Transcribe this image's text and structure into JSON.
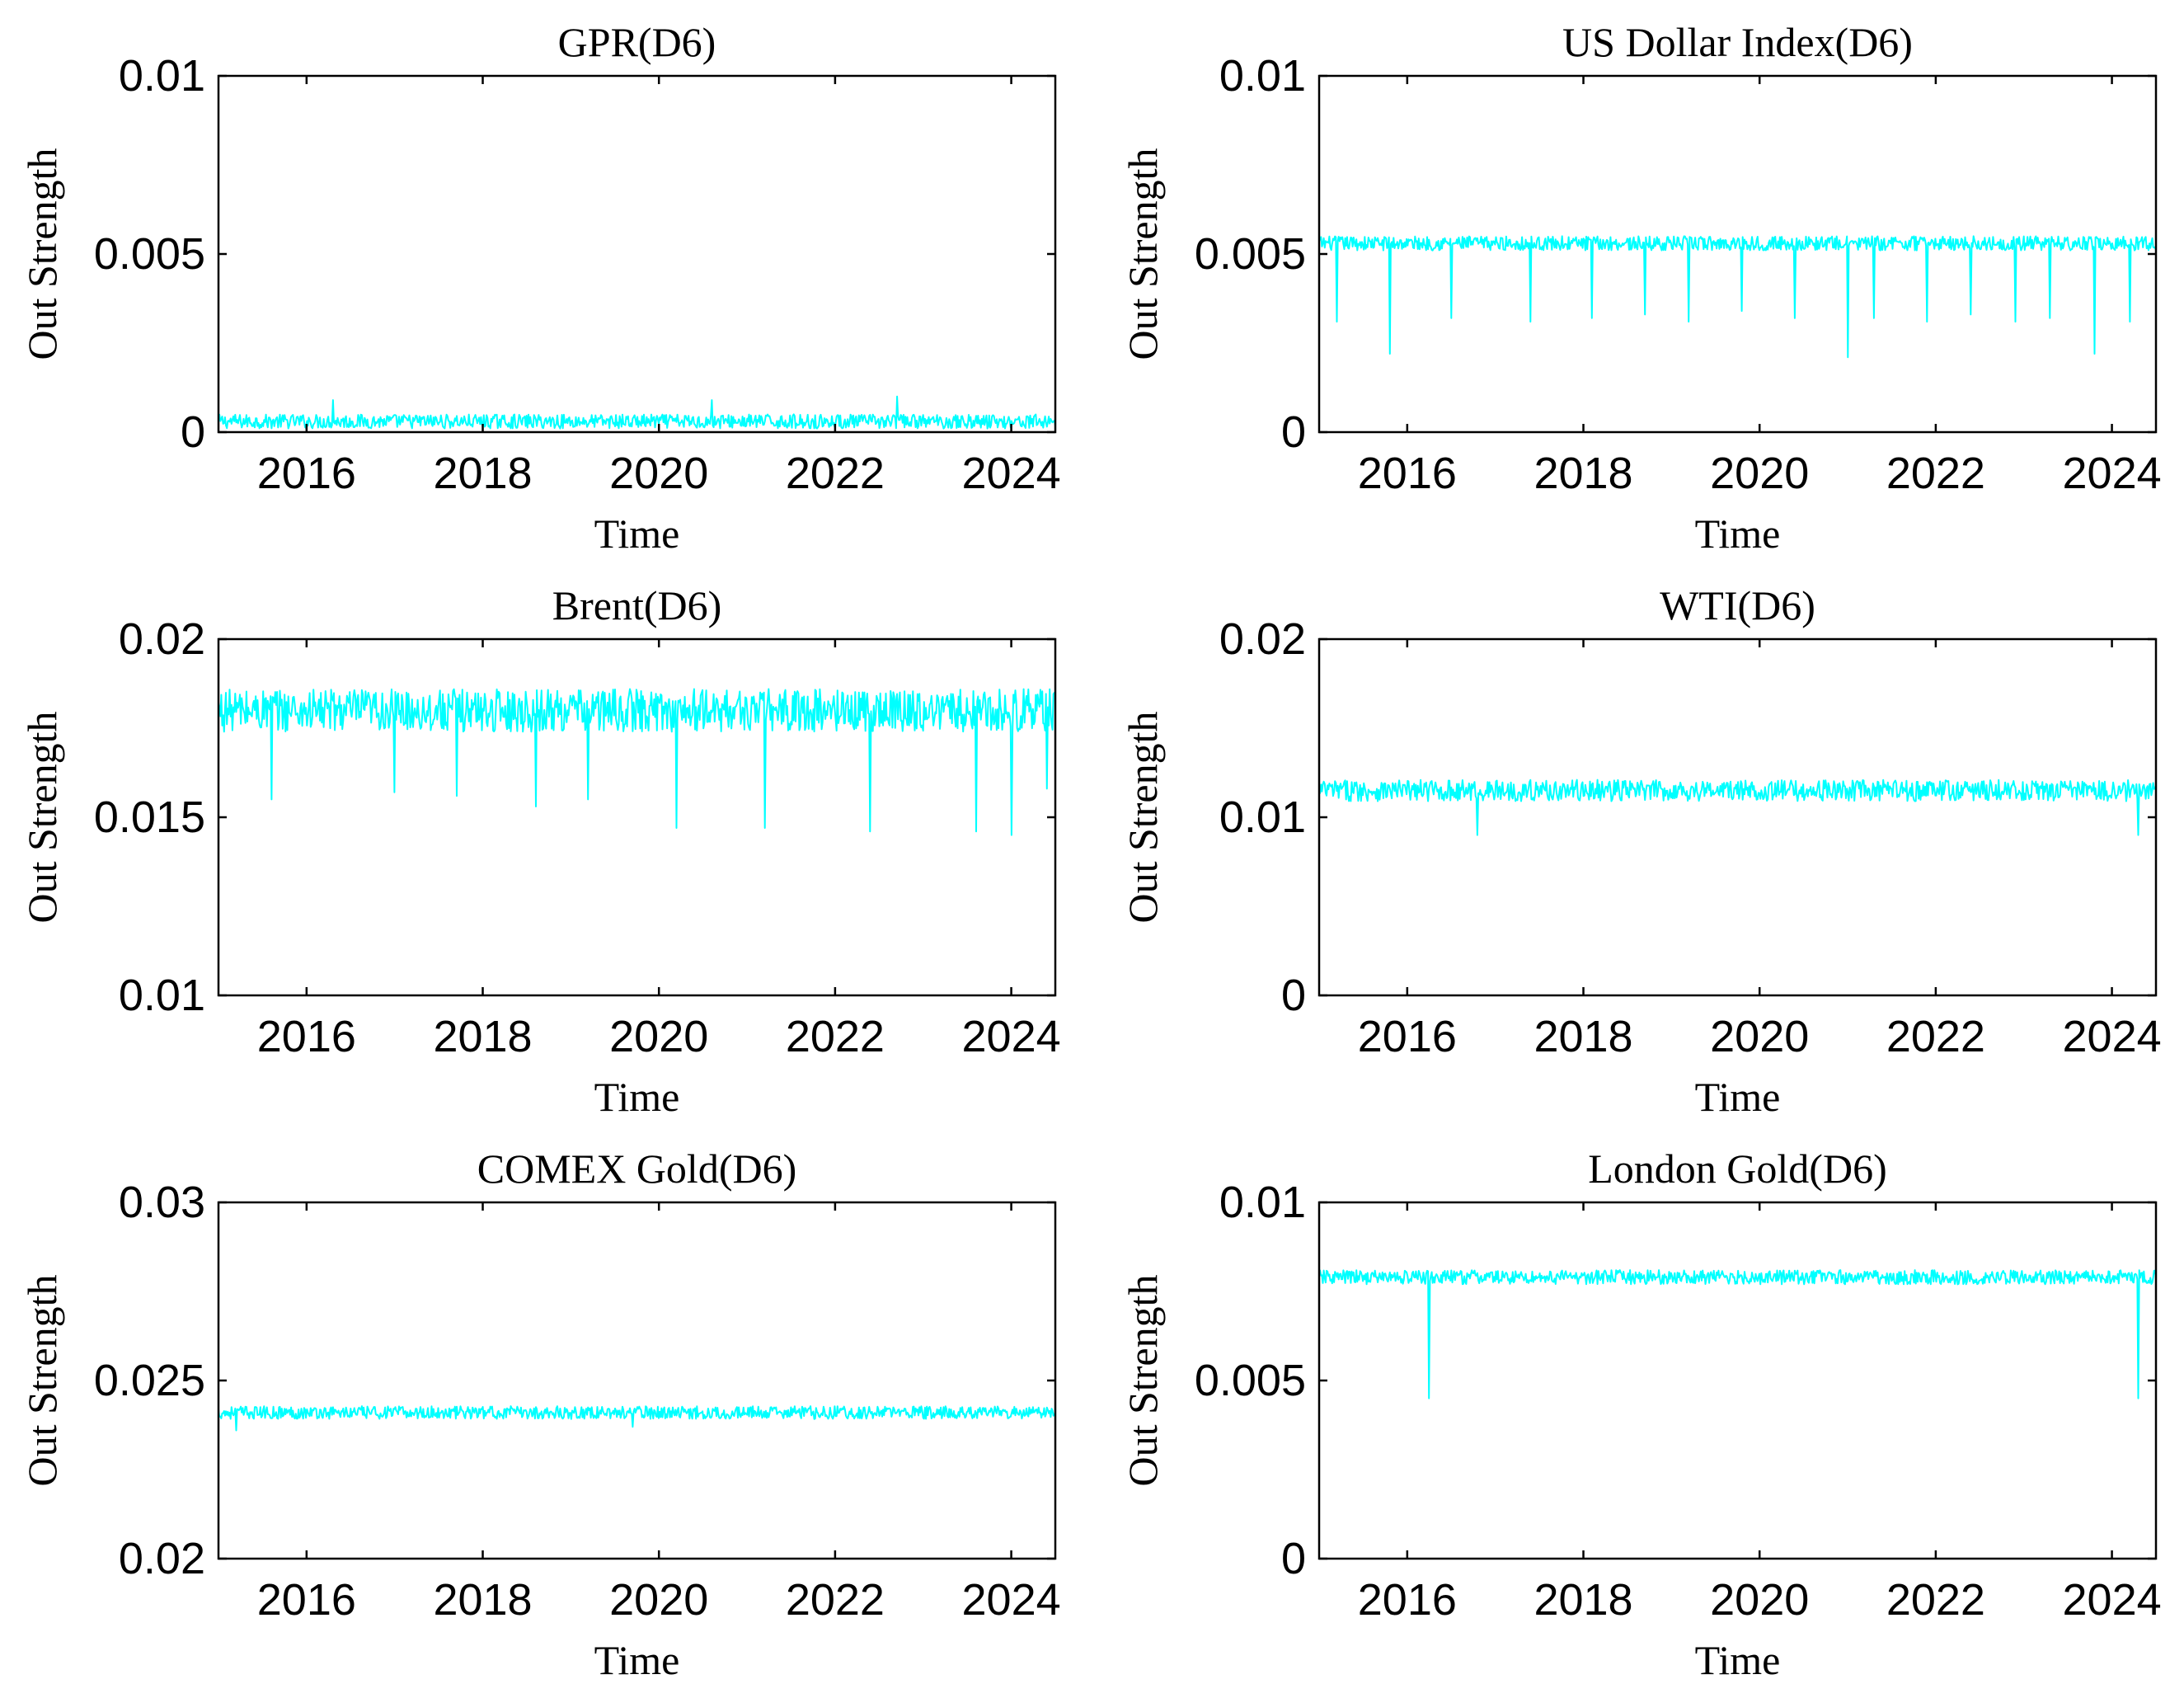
{
  "figure": {
    "description_free": true
  },
  "chart_data": [
    {
      "type": "line",
      "title": "GPR(D6)",
      "xlabel": "Time",
      "ylabel": "Out Strength",
      "xlim": [
        2015.0,
        2024.5
      ],
      "ylim": [
        0,
        0.01
      ],
      "xticks": [
        2016,
        2018,
        2020,
        2022,
        2024
      ],
      "yticks": [
        0,
        0.005,
        0.01
      ],
      "ytick_labels": [
        "0",
        "0.005",
        "0.01"
      ],
      "color": "#00FFFF",
      "series": [
        {
          "name": "GPR(D6)",
          "level": 0.0003,
          "noise": 0.0002,
          "min": 0.0,
          "spikes": [
            [
              2016.3,
              0.0009
            ],
            [
              2020.6,
              0.0009
            ],
            [
              2022.7,
              0.001
            ]
          ]
        }
      ]
    },
    {
      "type": "line",
      "title": "US Dollar Index(D6)",
      "xlabel": "Time",
      "ylabel": "Out Strength",
      "xlim": [
        2015.0,
        2024.5
      ],
      "ylim": [
        0,
        0.01
      ],
      "xticks": [
        2016,
        2018,
        2020,
        2022,
        2024
      ],
      "yticks": [
        0,
        0.005,
        0.01
      ],
      "ytick_labels": [
        "0",
        "0.005",
        "0.01"
      ],
      "color": "#00FFFF",
      "series": [
        {
          "name": "US Dollar Index(D6)",
          "level": 0.0053,
          "noise": 0.0002,
          "spikes": [
            [
              2015.2,
              0.0031
            ],
            [
              2015.8,
              0.0022
            ],
            [
              2016.5,
              0.0032
            ],
            [
              2017.4,
              0.0031
            ],
            [
              2018.1,
              0.0032
            ],
            [
              2018.7,
              0.0033
            ],
            [
              2019.2,
              0.0031
            ],
            [
              2019.8,
              0.0034
            ],
            [
              2020.4,
              0.0032
            ],
            [
              2021.0,
              0.0021
            ],
            [
              2021.3,
              0.0032
            ],
            [
              2021.9,
              0.0031
            ],
            [
              2022.4,
              0.0033
            ],
            [
              2022.9,
              0.0031
            ],
            [
              2023.3,
              0.0032
            ],
            [
              2023.8,
              0.0022
            ],
            [
              2024.2,
              0.0031
            ]
          ]
        }
      ]
    },
    {
      "type": "line",
      "title": "Brent(D6)",
      "xlabel": "Time",
      "ylabel": "Out Strength",
      "xlim": [
        2015.0,
        2024.5
      ],
      "ylim": [
        0.01,
        0.02
      ],
      "xticks": [
        2016,
        2018,
        2020,
        2022,
        2024
      ],
      "yticks": [
        0.01,
        0.015,
        0.02
      ],
      "ytick_labels": [
        "0.01",
        "0.015",
        "0.02"
      ],
      "color": "#00FFFF",
      "series": [
        {
          "name": "Brent(D6)",
          "level": 0.018,
          "noise": 0.0006,
          "spikes": [
            [
              2015.6,
              0.0155
            ],
            [
              2017.0,
              0.0157
            ],
            [
              2017.7,
              0.0156
            ],
            [
              2018.6,
              0.0153
            ],
            [
              2019.2,
              0.0155
            ],
            [
              2020.2,
              0.0147
            ],
            [
              2021.2,
              0.0147
            ],
            [
              2022.4,
              0.0146
            ],
            [
              2023.6,
              0.0146
            ],
            [
              2024.0,
              0.0145
            ],
            [
              2024.4,
              0.0158
            ]
          ]
        }
      ]
    },
    {
      "type": "line",
      "title": "WTI(D6)",
      "xlabel": "Time",
      "ylabel": "Out Strength",
      "xlim": [
        2015.0,
        2024.5
      ],
      "ylim": [
        0,
        0.02
      ],
      "xticks": [
        2016,
        2018,
        2020,
        2022,
        2024
      ],
      "yticks": [
        0,
        0.01,
        0.02
      ],
      "ytick_labels": [
        "0",
        "0.01",
        "0.02"
      ],
      "color": "#00FFFF",
      "series": [
        {
          "name": "WTI(D6)",
          "level": 0.0115,
          "noise": 0.0006,
          "spikes": [
            [
              2016.8,
              0.009
            ],
            [
              2024.3,
              0.009
            ]
          ]
        }
      ]
    },
    {
      "type": "line",
      "title": "COMEX Gold(D6)",
      "xlabel": "Time",
      "ylabel": "Out Strength",
      "xlim": [
        2015.0,
        2024.5
      ],
      "ylim": [
        0.02,
        0.03
      ],
      "xticks": [
        2016,
        2018,
        2020,
        2022,
        2024
      ],
      "yticks": [
        0.02,
        0.025,
        0.03
      ],
      "ytick_labels": [
        "0.02",
        "0.025",
        "0.03"
      ],
      "color": "#00FFFF",
      "series": [
        {
          "name": "COMEX Gold(D6)",
          "level": 0.0241,
          "noise": 0.00018,
          "spikes": [
            [
              2015.2,
              0.0236
            ],
            [
              2019.7,
              0.0237
            ]
          ]
        }
      ]
    },
    {
      "type": "line",
      "title": "London Gold(D6)",
      "xlabel": "Time",
      "ylabel": "Out Strength",
      "xlim": [
        2015.0,
        2024.5
      ],
      "ylim": [
        0,
        0.01
      ],
      "xticks": [
        2016,
        2018,
        2020,
        2022,
        2024
      ],
      "yticks": [
        0,
        0.005,
        0.01
      ],
      "ytick_labels": [
        "0",
        "0.005",
        "0.01"
      ],
      "color": "#00FFFF",
      "series": [
        {
          "name": "London Gold(D6)",
          "level": 0.0079,
          "noise": 0.0002,
          "spikes": [
            [
              2016.25,
              0.0045
            ],
            [
              2024.3,
              0.0045
            ]
          ]
        }
      ]
    }
  ]
}
